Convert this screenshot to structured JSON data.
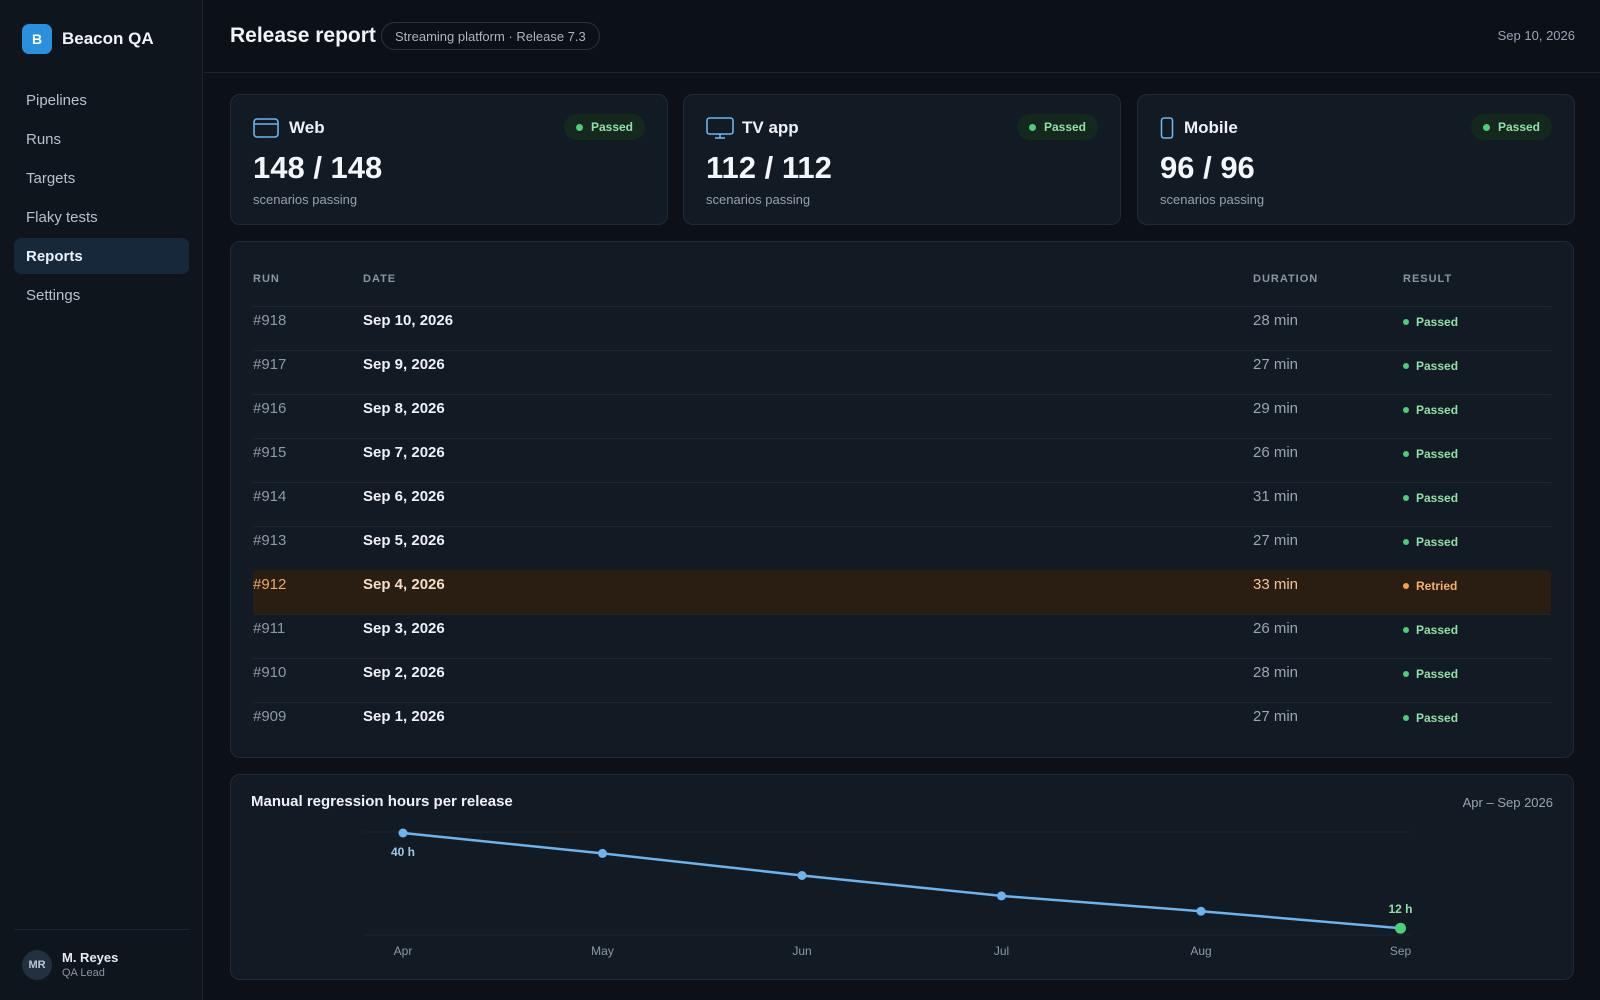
{
  "app": {
    "logo_letter": "B",
    "name": "Beacon QA"
  },
  "sidebar": {
    "items": [
      {
        "label": "Pipelines"
      },
      {
        "label": "Runs"
      },
      {
        "label": "Targets"
      },
      {
        "label": "Flaky tests"
      },
      {
        "label": "Reports",
        "active": true
      },
      {
        "label": "Settings"
      }
    ]
  },
  "user": {
    "initials": "MR",
    "name": "M. Reyes",
    "role": "QA Lead"
  },
  "header": {
    "title": "Release report",
    "context": "Streaming platform · Release 7.3",
    "date": "Sep 10, 2026"
  },
  "cards": [
    {
      "title": "Web",
      "icon": "browser-icon",
      "status": "Passed",
      "value": "148 / 148",
      "sub": "scenarios passing"
    },
    {
      "title": "TV app",
      "icon": "tv-icon",
      "status": "Passed",
      "value": "112 / 112",
      "sub": "scenarios passing"
    },
    {
      "title": "Mobile",
      "icon": "phone-icon",
      "status": "Passed",
      "value": "96 / 96",
      "sub": "scenarios passing"
    }
  ],
  "table": {
    "columns": [
      "RUN",
      "DATE",
      "DURATION",
      "RESULT"
    ],
    "rows": [
      {
        "run": "#918",
        "date": "Sep 10, 2026",
        "duration": "28 min",
        "result": "Passed"
      },
      {
        "run": "#917",
        "date": "Sep 9, 2026",
        "duration": "27 min",
        "result": "Passed"
      },
      {
        "run": "#916",
        "date": "Sep 8, 2026",
        "duration": "29 min",
        "result": "Passed"
      },
      {
        "run": "#915",
        "date": "Sep 7, 2026",
        "duration": "26 min",
        "result": "Passed"
      },
      {
        "run": "#914",
        "date": "Sep 6, 2026",
        "duration": "31 min",
        "result": "Passed"
      },
      {
        "run": "#913",
        "date": "Sep 5, 2026",
        "duration": "27 min",
        "result": "Passed"
      },
      {
        "run": "#912",
        "date": "Sep 4, 2026",
        "duration": "33 min",
        "result": "Retried"
      },
      {
        "run": "#911",
        "date": "Sep 3, 2026",
        "duration": "26 min",
        "result": "Passed"
      },
      {
        "run": "#910",
        "date": "Sep 2, 2026",
        "duration": "28 min",
        "result": "Passed"
      },
      {
        "run": "#909",
        "date": "Sep 1, 2026",
        "duration": "27 min",
        "result": "Passed"
      }
    ]
  },
  "colors": {
    "accent": "#2b8fe0",
    "passed": "#4ccf78",
    "retried": "#f5a14e",
    "line": "#6cb4f0"
  },
  "chart_data": {
    "type": "line",
    "title": "Manual regression hours per release",
    "range_label": "Apr – Sep 2026",
    "categories": [
      "Apr",
      "May",
      "Jun",
      "Jul",
      "Aug",
      "Sep"
    ],
    "values": [
      40,
      34,
      27.5,
      21.5,
      17,
      12
    ],
    "ylim": [
      10,
      40
    ],
    "grid": true,
    "annotations": [
      {
        "index": 0,
        "text": "40 h"
      },
      {
        "index": 5,
        "text": "12 h"
      }
    ]
  }
}
